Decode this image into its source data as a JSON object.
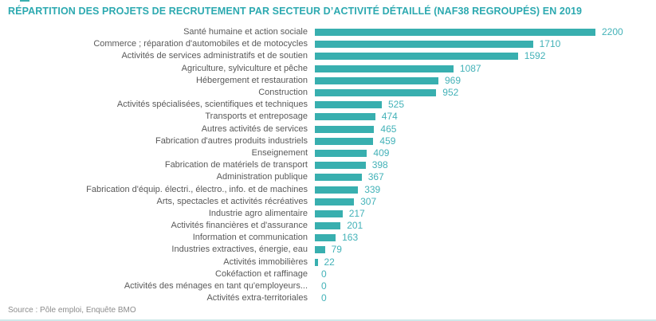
{
  "title": "RÉPARTITION DES PROJETS DE RECRUTEMENT PAR SECTEUR D’ACTIVITÉ DÉTAILLÉ (NAF38 REGROUPÉS) EN 2019",
  "source": "Source : Pôle emploi, Enquête BMO",
  "colors": {
    "title": "#2ca9b0",
    "bar": "#38afaf",
    "value_label": "#43b2b8",
    "category_label": "#595959",
    "bottom_rule": "#cfe9ea"
  },
  "chart_data": {
    "type": "bar",
    "orientation": "horizontal",
    "title": "RÉPARTITION DES PROJETS DE RECRUTEMENT PAR SECTEUR D’ACTIVITÉ DÉTAILLÉ (NAF38 REGROUPÉS) EN 2019",
    "xlabel": "",
    "ylabel": "",
    "xlim": [
      0,
      2200
    ],
    "grid": false,
    "legend": false,
    "data_labels": true,
    "categories": [
      "Santé humaine et action sociale",
      "Commerce ; réparation d'automobiles et de motocycles",
      "Activités de services administratifs et de soutien",
      "Agriculture, sylviculture et pêche",
      "Hébergement et restauration",
      "Construction",
      "Activités spécialisées, scientifiques et techniques",
      "Transports et entreposage",
      "Autres activités de services",
      "Fabrication d'autres produits industriels",
      "Enseignement",
      "Fabrication de matériels de transport",
      "Administration publique",
      "Fabrication d'équip. électri., électro., info. et de machines",
      "Arts, spectacles et activités récréatives",
      "Industrie agro alimentaire",
      "Activités financières et d'assurance",
      "Information et communication",
      "Industries extractives, énergie, eau",
      "Activités immobilières",
      "Cokéfaction et raffinage",
      "Activités des ménages en tant qu'employeurs...",
      "Activités extra-territoriales"
    ],
    "values": [
      2200,
      1710,
      1592,
      1087,
      969,
      952,
      525,
      474,
      465,
      459,
      409,
      398,
      367,
      339,
      307,
      217,
      201,
      163,
      79,
      22,
      0,
      0,
      0
    ]
  }
}
